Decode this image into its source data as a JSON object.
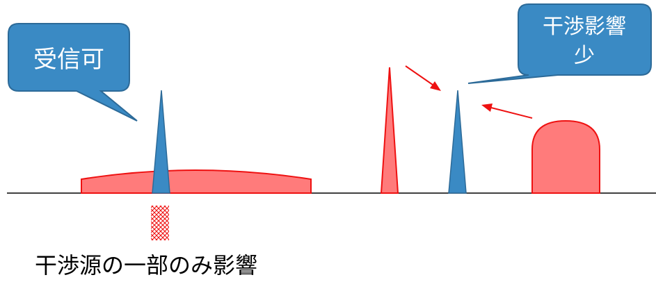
{
  "callouts": {
    "receivable": "受信可",
    "low_interference_line1": "干渉影響",
    "low_interference_line2": "少"
  },
  "caption": "干渉源の一部のみ影響",
  "colors": {
    "signal_blue": "#3a8ac4",
    "interferer_red": "#ff7b7b",
    "interferer_stroke": "#ee1111",
    "callout_fill": "#3a8ac4",
    "callout_stroke": "#2c6a98",
    "arrow_red": "#ee1111",
    "hatch_red": "#ee1111",
    "baseline": "#000000"
  },
  "icons": {
    "hatch_marker": "crosshatch-marker"
  }
}
